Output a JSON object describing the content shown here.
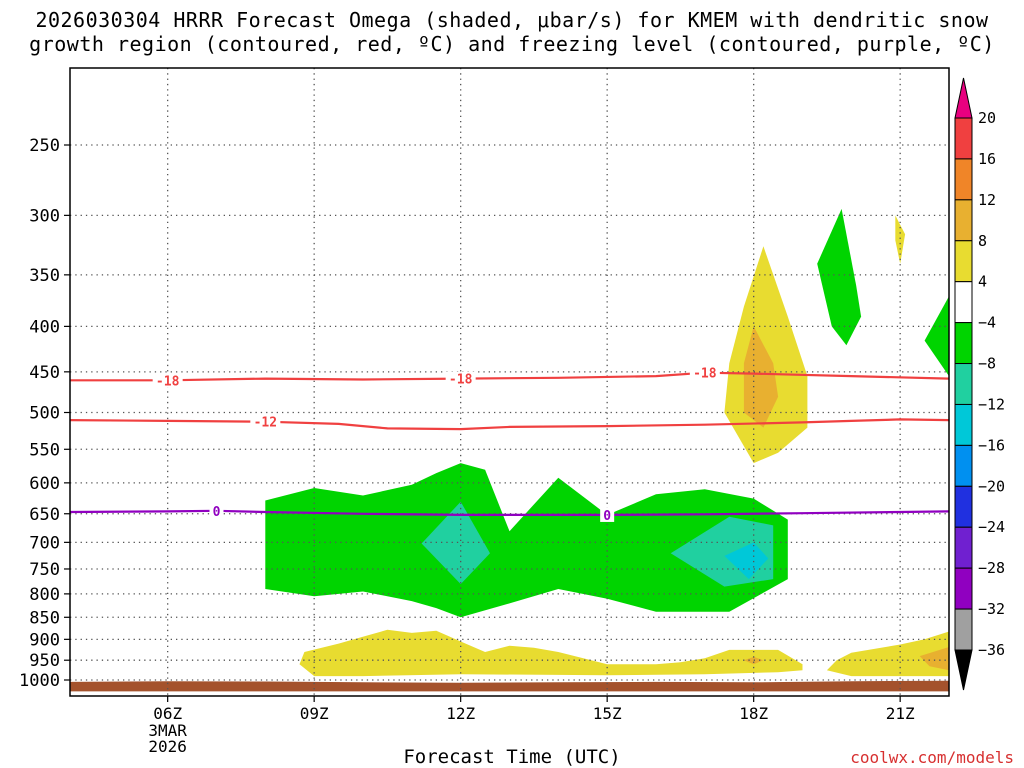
{
  "chart_data": {
    "type": "time-height cross-section",
    "title_line1": "2026030304 HRRR Forecast Omega (shaded, μbar/s) for KMEM with dendritic snow",
    "title_line2": "growth region (contoured, red, ºC) and freezing level (contoured, purple, ºC)",
    "xlabel": "Forecast Time (UTC)",
    "credit": "coolwx.com/models",
    "x_ticks": [
      "06Z",
      "09Z",
      "12Z",
      "15Z",
      "18Z",
      "21Z"
    ],
    "x_tick_hours": [
      6,
      9,
      12,
      15,
      18,
      21
    ],
    "x_date_lines": [
      "3MAR",
      "2026"
    ],
    "x_range_hours": [
      4,
      22
    ],
    "y_ticks": [
      250,
      300,
      350,
      400,
      450,
      500,
      550,
      600,
      650,
      700,
      750,
      800,
      850,
      900,
      950,
      1000
    ],
    "y_range_hPa": [
      200,
      1030
    ],
    "colorbar": {
      "ticks": [
        "20",
        "16",
        "12",
        "8",
        "4",
        "−4",
        "−8",
        "−12",
        "−16",
        "−20",
        "−24",
        "−28",
        "−32",
        "−36"
      ],
      "colors": [
        "#e8007f",
        "#f04040",
        "#f08528",
        "#e8b030",
        "#e8dc30",
        "#ffffff",
        "#00d400",
        "#20d0a0",
        "#00c8d8",
        "#0090f0",
        "#2030e0",
        "#7020d0",
        "#9000c0",
        "#a0a0a0",
        "#000000"
      ]
    },
    "contours": [
      {
        "label": "-18",
        "color": "#f04040",
        "pts": [
          [
            4,
            460
          ],
          [
            6,
            460
          ],
          [
            8,
            458
          ],
          [
            10,
            459
          ],
          [
            12,
            458
          ],
          [
            14,
            457
          ],
          [
            16,
            455
          ],
          [
            17,
            451
          ],
          [
            18,
            452
          ],
          [
            20,
            455
          ],
          [
            22,
            458
          ]
        ],
        "label_hours": [
          6,
          12,
          17
        ]
      },
      {
        "label": "-12",
        "color": "#f04040",
        "pts": [
          [
            4,
            510
          ],
          [
            6,
            511
          ],
          [
            8,
            512
          ],
          [
            9.5,
            515
          ],
          [
            10.5,
            521
          ],
          [
            12,
            522
          ],
          [
            13,
            519
          ],
          [
            15,
            518
          ],
          [
            17,
            516
          ],
          [
            19,
            513
          ],
          [
            20,
            511
          ],
          [
            21,
            509
          ],
          [
            22,
            510
          ]
        ],
        "label_hours": [
          8
        ]
      },
      {
        "label": "0",
        "color": "#9000c0",
        "pts": [
          [
            4,
            647
          ],
          [
            6,
            646
          ],
          [
            7,
            645
          ],
          [
            8,
            647
          ],
          [
            10,
            650
          ],
          [
            12,
            652
          ],
          [
            15,
            652
          ],
          [
            17,
            651
          ],
          [
            19,
            649
          ],
          [
            21,
            647
          ],
          [
            22,
            646
          ]
        ],
        "label_hours": [
          7,
          15
        ]
      }
    ],
    "omega_regions": [
      {
        "range": "-8 to -4",
        "color": "#00d400",
        "pts": [
          [
            8,
            628
          ],
          [
            9,
            608
          ],
          [
            10,
            620
          ],
          [
            11,
            603
          ],
          [
            11.5,
            585
          ],
          [
            12,
            570
          ],
          [
            12.5,
            580
          ],
          [
            13,
            680
          ],
          [
            14,
            592
          ],
          [
            15,
            652
          ],
          [
            16,
            618
          ],
          [
            17,
            610
          ],
          [
            18,
            625
          ],
          [
            18.7,
            660
          ],
          [
            18.7,
            770
          ],
          [
            17.5,
            838
          ],
          [
            16,
            838
          ],
          [
            15,
            810
          ],
          [
            14,
            790
          ],
          [
            13,
            820
          ],
          [
            12,
            850
          ],
          [
            11.5,
            830
          ],
          [
            11,
            815
          ],
          [
            10,
            795
          ],
          [
            9,
            805
          ],
          [
            8,
            790
          ]
        ]
      },
      {
        "range": "-12 to -8",
        "color": "#20d0a0",
        "pts": [
          [
            11.2,
            702
          ],
          [
            12,
            630
          ],
          [
            12.6,
            720
          ],
          [
            12,
            780
          ]
        ]
      },
      {
        "range": "-12 to -8",
        "color": "#20d0a0",
        "pts": [
          [
            16.3,
            720
          ],
          [
            17.5,
            655
          ],
          [
            18.4,
            670
          ],
          [
            18.4,
            770
          ],
          [
            17.4,
            785
          ]
        ]
      },
      {
        "range": "-16 to -12",
        "color": "#00c8d8",
        "pts": [
          [
            17.4,
            725
          ],
          [
            18,
            700
          ],
          [
            18.3,
            730
          ],
          [
            17.9,
            770
          ]
        ]
      },
      {
        "range": "4 to 8",
        "color": "#e8dc30",
        "pts": [
          [
            17.5,
            440
          ],
          [
            17.8,
            380
          ],
          [
            18.2,
            325
          ],
          [
            18.7,
            390
          ],
          [
            19.1,
            455
          ],
          [
            19.1,
            520
          ],
          [
            18.5,
            555
          ],
          [
            18,
            570
          ],
          [
            17.4,
            500
          ]
        ]
      },
      {
        "range": "8 to 12",
        "color": "#e8b030",
        "pts": [
          [
            17.8,
            440
          ],
          [
            18,
            400
          ],
          [
            18.4,
            440
          ],
          [
            18.5,
            480
          ],
          [
            18.2,
            520
          ],
          [
            17.8,
            500
          ]
        ]
      },
      {
        "range": "-8 to -4",
        "color": "#00d400",
        "pts": [
          [
            19.3,
            340
          ],
          [
            19.8,
            295
          ],
          [
            20.1,
            360
          ],
          [
            20.2,
            390
          ],
          [
            19.9,
            420
          ],
          [
            19.6,
            400
          ]
        ]
      },
      {
        "range": "4 to 8",
        "color": "#e8dc30",
        "pts": [
          [
            20.9,
            300
          ],
          [
            21.1,
            315
          ],
          [
            21,
            340
          ],
          [
            20.9,
            320
          ]
        ]
      },
      {
        "range": "-8 to -4",
        "color": "#00d400",
        "pts": [
          [
            21.5,
            415
          ],
          [
            22,
            370
          ],
          [
            22,
            455
          ]
        ]
      },
      {
        "range": "4 to 8",
        "color": "#e8dc30",
        "pts": [
          [
            8.7,
            960
          ],
          [
            8.8,
            930
          ],
          [
            9.5,
            910
          ],
          [
            10.5,
            878
          ],
          [
            11,
            885
          ],
          [
            11.5,
            880
          ],
          [
            12,
            905
          ],
          [
            12.5,
            930
          ],
          [
            13,
            915
          ],
          [
            13.5,
            920
          ],
          [
            14,
            930
          ],
          [
            15,
            960
          ],
          [
            16,
            960
          ],
          [
            16.5,
            955
          ],
          [
            17,
            945
          ],
          [
            17.5,
            925
          ],
          [
            18,
            925
          ],
          [
            18.5,
            925
          ],
          [
            19,
            960
          ],
          [
            19,
            975
          ],
          [
            18.5,
            980
          ],
          [
            17,
            985
          ],
          [
            15,
            988
          ],
          [
            12,
            985
          ],
          [
            10,
            990
          ],
          [
            9,
            990
          ]
        ]
      },
      {
        "range": "8 to 12",
        "color": "#e8b030",
        "pts": [
          [
            17.8,
            950
          ],
          [
            18,
            942
          ],
          [
            18.2,
            950
          ],
          [
            18,
            960
          ]
        ]
      },
      {
        "range": "4 to 8",
        "color": "#e8dc30",
        "pts": [
          [
            19.5,
            975
          ],
          [
            19.7,
            950
          ],
          [
            20,
            932
          ],
          [
            21,
            912
          ],
          [
            21.5,
            900
          ],
          [
            22,
            882
          ],
          [
            22,
            990
          ],
          [
            20,
            990
          ]
        ]
      },
      {
        "range": "8 to 12",
        "color": "#e8b030",
        "pts": [
          [
            21.4,
            940
          ],
          [
            22,
            918
          ],
          [
            22,
            975
          ],
          [
            21.6,
            965
          ]
        ]
      },
      {
        "range": "terrain",
        "color": "#a4522c",
        "pts": [
          [
            4,
            1005
          ],
          [
            6,
            1003
          ],
          [
            8,
            1004
          ],
          [
            10,
            1006
          ],
          [
            12,
            1007
          ],
          [
            14,
            1006
          ],
          [
            16,
            1005
          ],
          [
            18,
            1006
          ],
          [
            20,
            1003
          ],
          [
            22,
            1002
          ],
          [
            22,
            1030
          ],
          [
            4,
            1030
          ]
        ]
      }
    ]
  }
}
